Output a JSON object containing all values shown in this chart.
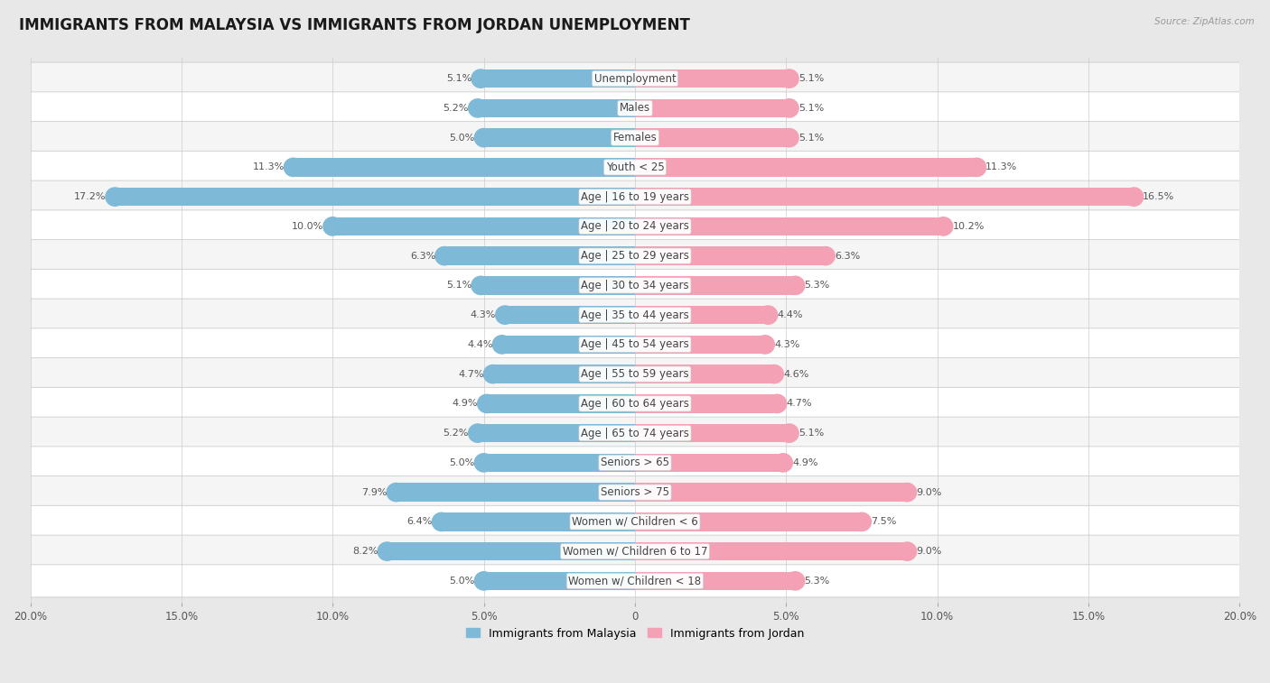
{
  "title": "IMMIGRANTS FROM MALAYSIA VS IMMIGRANTS FROM JORDAN UNEMPLOYMENT",
  "source": "Source: ZipAtlas.com",
  "categories": [
    "Unemployment",
    "Males",
    "Females",
    "Youth < 25",
    "Age | 16 to 19 years",
    "Age | 20 to 24 years",
    "Age | 25 to 29 years",
    "Age | 30 to 34 years",
    "Age | 35 to 44 years",
    "Age | 45 to 54 years",
    "Age | 55 to 59 years",
    "Age | 60 to 64 years",
    "Age | 65 to 74 years",
    "Seniors > 65",
    "Seniors > 75",
    "Women w/ Children < 6",
    "Women w/ Children 6 to 17",
    "Women w/ Children < 18"
  ],
  "malaysia_values": [
    5.1,
    5.2,
    5.0,
    11.3,
    17.2,
    10.0,
    6.3,
    5.1,
    4.3,
    4.4,
    4.7,
    4.9,
    5.2,
    5.0,
    7.9,
    6.4,
    8.2,
    5.0
  ],
  "jordan_values": [
    5.1,
    5.1,
    5.1,
    11.3,
    16.5,
    10.2,
    6.3,
    5.3,
    4.4,
    4.3,
    4.6,
    4.7,
    5.1,
    4.9,
    9.0,
    7.5,
    9.0,
    5.3
  ],
  "malaysia_color": "#7fb9d8",
  "jordan_color": "#f4a0b5",
  "background_color": "#e8e8e8",
  "row_color_odd": "#f5f5f5",
  "row_color_even": "#ffffff",
  "axis_limit": 20.0,
  "legend_malaysia": "Immigrants from Malaysia",
  "legend_jordan": "Immigrants from Jordan",
  "title_fontsize": 12,
  "label_fontsize": 8.5,
  "value_fontsize": 8.0,
  "bottom_tick_labels": [
    "20.0%",
    "15.0%",
    "10.0%",
    "5.0%",
    "0",
    "5.0%",
    "10.0%",
    "15.0%",
    "20.0%"
  ],
  "bottom_tick_vals": [
    -20,
    -15,
    -10,
    -5,
    0,
    5,
    10,
    15,
    20
  ]
}
